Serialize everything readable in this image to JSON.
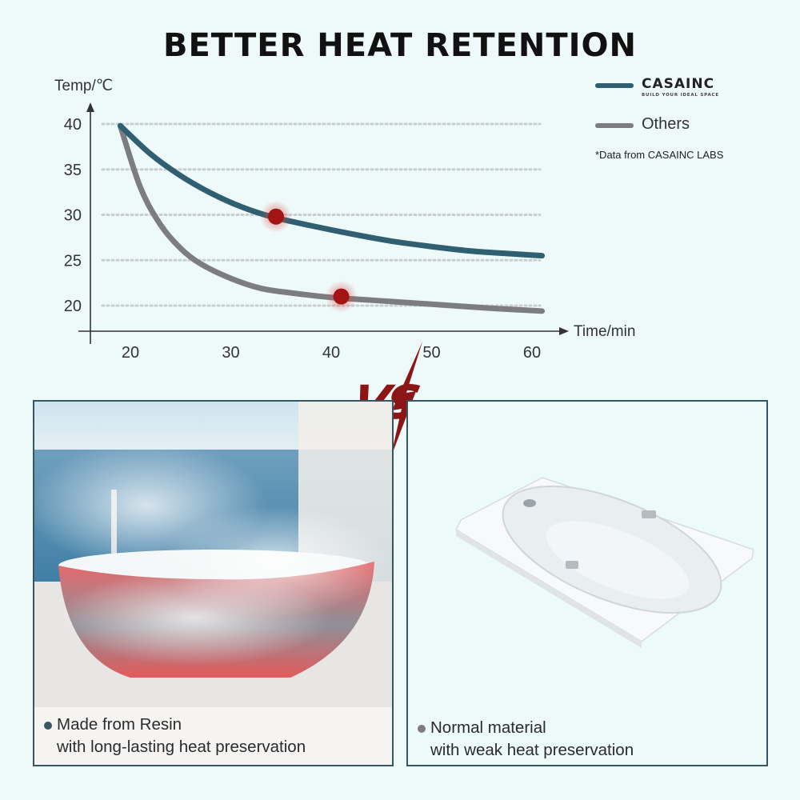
{
  "title": "BETTER HEAT RETENTION",
  "chart_data": {
    "type": "line",
    "ylabel": "Temp/℃",
    "xlabel": "Time/min",
    "x_ticks": [
      20,
      30,
      40,
      50,
      60
    ],
    "y_ticks": [
      40,
      35,
      30,
      25,
      20
    ],
    "xlim": [
      17,
      63
    ],
    "ylim": [
      17,
      42
    ],
    "grid": "horizontal dotted",
    "legend_position": "top-right",
    "series": [
      {
        "name": "CASAINC",
        "color": "#2f5f70",
        "x": [
          19,
          22,
          25,
          28,
          31,
          34,
          38,
          42,
          46,
          50,
          54,
          58,
          61
        ],
        "y": [
          39.8,
          36.7,
          34.3,
          32.4,
          30.9,
          29.8,
          28.8,
          27.9,
          27.1,
          26.5,
          26.0,
          25.7,
          25.5
        ]
      },
      {
        "name": "Others",
        "color": "#7b7d80",
        "x": [
          19,
          21,
          23,
          25,
          27,
          30,
          33,
          36,
          40,
          44,
          48,
          52,
          56,
          61
        ],
        "y": [
          39.8,
          33.0,
          28.9,
          26.3,
          24.6,
          23.0,
          21.9,
          21.4,
          20.9,
          20.6,
          20.3,
          20.0,
          19.7,
          19.4
        ]
      }
    ],
    "markers": [
      {
        "series": "CASAINC",
        "x": 34.5,
        "y": 29.8
      },
      {
        "series": "Others",
        "x": 41,
        "y": 21.0
      }
    ]
  },
  "legend": {
    "brand_name": "CASAINC",
    "brand_tagline": "BUILD YOUR IDEAL SPACE",
    "others_label": "Others"
  },
  "source_note": "*Data from CASAINC LABS",
  "vs_label": "VS",
  "panels": {
    "left_caption_line1": "Made from Resin",
    "left_caption_line2": "with long-lasting heat preservation",
    "right_caption_line1": "Normal material",
    "right_caption_line2": "with weak heat preservation"
  },
  "colors": {
    "brand_line": "#2f5f70",
    "others_line": "#7b7d80",
    "marker": "#a31414",
    "vs_red": "#8c1515"
  }
}
